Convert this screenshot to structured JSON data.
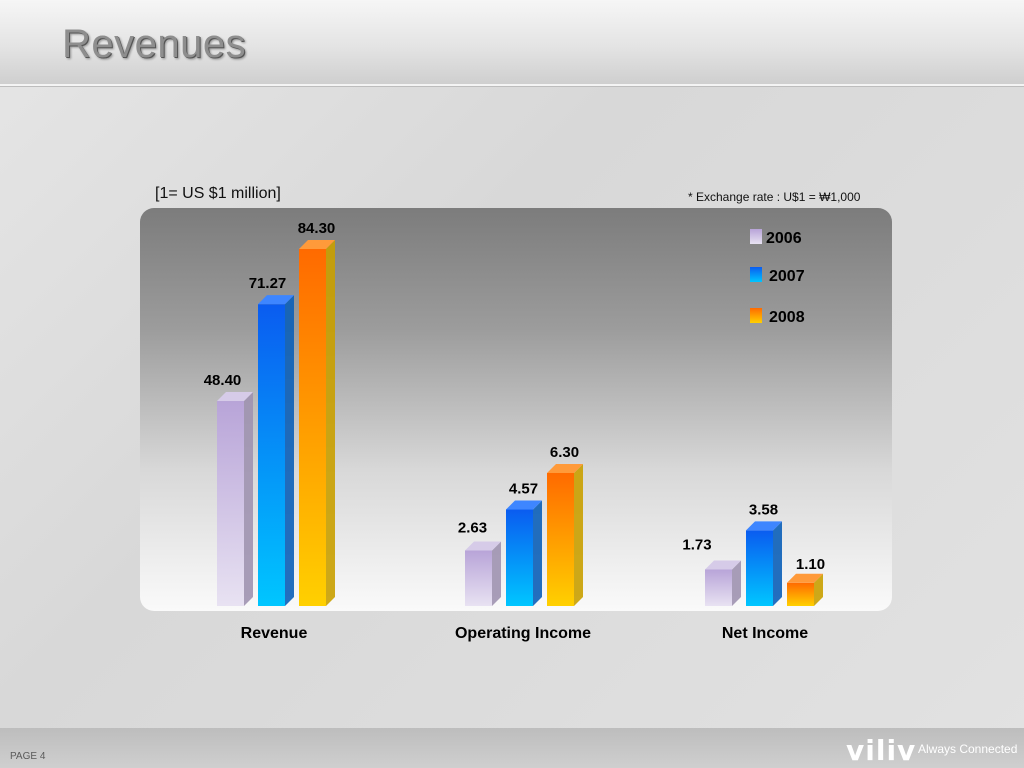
{
  "header": {
    "title": "Revenues"
  },
  "notes": {
    "unit": "[1= US $1 million]",
    "exchange_rate": "* Exchange rate : U$1 = ₩1,000"
  },
  "footer": {
    "page": "PAGE 4",
    "brand": "viliv",
    "tagline": "Always Connected"
  },
  "colors": {
    "2006": "#c7b6e0",
    "2007": "#1277f0",
    "2008": "#ff8a00"
  },
  "chart_data": {
    "type": "bar",
    "categories": [
      "Revenue",
      "Operating Income",
      "Net Income"
    ],
    "series": [
      {
        "name": "2006",
        "values": [
          48.4,
          2.63,
          1.73
        ]
      },
      {
        "name": "2007",
        "values": [
          71.27,
          4.57,
          3.58
        ]
      },
      {
        "name": "2008",
        "values": [
          84.3,
          6.3,
          1.1
        ]
      }
    ],
    "data_labels": [
      [
        "48.40",
        "2.63",
        "1.73"
      ],
      [
        "71.27",
        "4.57",
        "3.58"
      ],
      [
        "84.30",
        "6.30",
        "1.10"
      ]
    ],
    "scale_max": [
      84.3,
      6.3,
      3.58
    ],
    "grid": false,
    "legend": "top-right"
  }
}
